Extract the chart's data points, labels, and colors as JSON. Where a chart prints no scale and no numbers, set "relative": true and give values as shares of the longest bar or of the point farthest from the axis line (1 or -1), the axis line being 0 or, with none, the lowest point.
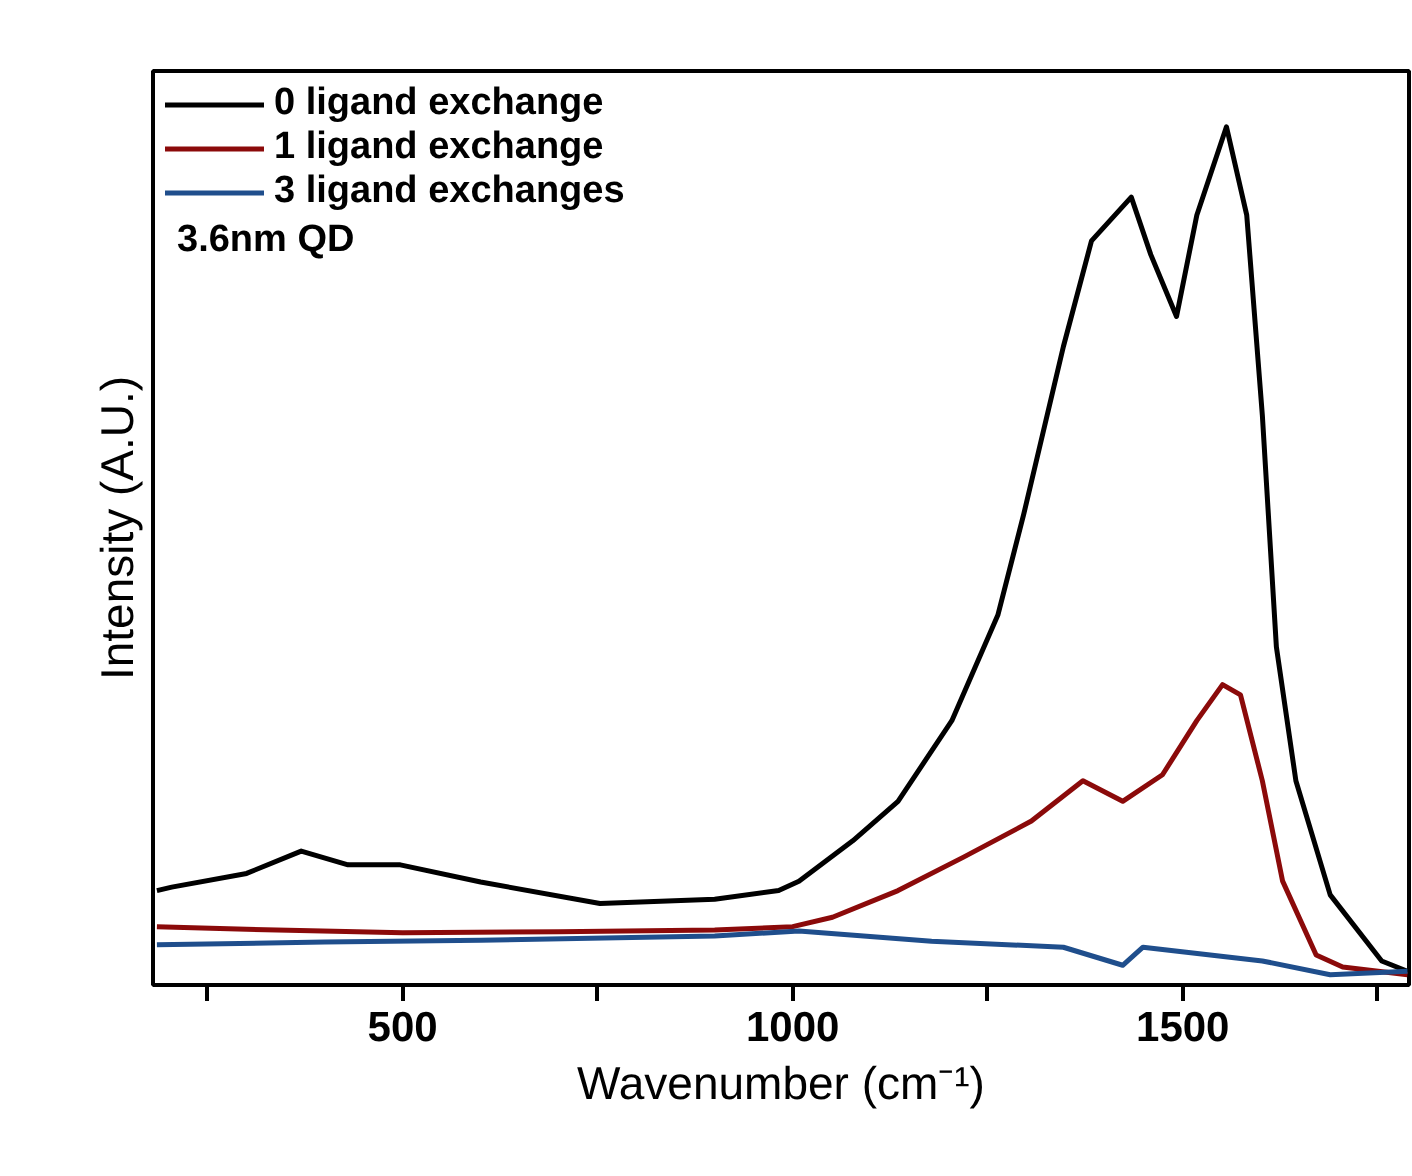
{
  "chart_data": {
    "type": "line",
    "relative": true,
    "xlabel": "Wavenumber (cm⁻¹)",
    "ylabel": "Intensity (A.U.)",
    "xlim": [
      180,
      1790
    ],
    "xticks": [
      {
        "value": 250,
        "label": null
      },
      500,
      {
        "value": 750,
        "label": null
      },
      1000,
      {
        "value": 1250,
        "label": null
      },
      1500,
      {
        "value": 1750,
        "label": null
      }
    ],
    "legend": "top left",
    "grid": false,
    "line_style": "solid",
    "marker": "none",
    "annotations": [
      "3.6nm QD"
    ],
    "series": [
      {
        "name": "0 ligand exchange",
        "color": "#000000",
        "x": [
          185,
          204,
          300,
          370,
          430,
          497,
          600,
          753,
          900,
          982,
          1008,
          1077,
          1135,
          1204,
          1263,
          1296,
          1347,
          1383,
          1434,
          1459,
          1492,
          1518,
          1556,
          1582,
          1602,
          1620,
          1645,
          1689,
          1755,
          1788
        ],
        "values": [
          0.11,
          0.114,
          0.13,
          0.156,
          0.14,
          0.14,
          0.12,
          0.095,
          0.1,
          0.11,
          0.121,
          0.168,
          0.214,
          0.308,
          0.431,
          0.548,
          0.744,
          0.867,
          0.918,
          0.851,
          0.779,
          0.897,
          1,
          0.897,
          0.664,
          0.394,
          0.238,
          0.105,
          0.028,
          0.016
        ]
      },
      {
        "name": "1 ligand exchange",
        "color": "#8b0a0a",
        "x": [
          185,
          300,
          500,
          700,
          900,
          1000,
          1051,
          1135,
          1219,
          1306,
          1372,
          1423,
          1474,
          1518,
          1551,
          1574,
          1602,
          1628,
          1671,
          1705,
          1788
        ],
        "values": [
          0.068,
          0.065,
          0.061,
          0.062,
          0.064,
          0.068,
          0.079,
          0.11,
          0.149,
          0.191,
          0.238,
          0.214,
          0.245,
          0.308,
          0.35,
          0.338,
          0.238,
          0.121,
          0.035,
          0.021,
          0.012
        ]
      },
      {
        "name": "3 ligand exchanges",
        "color": "#1f4e8c",
        "x": [
          185,
          400,
          600,
          900,
          1008,
          1178,
          1347,
          1423,
          1449,
          1602,
          1689,
          1788
        ],
        "values": [
          0.047,
          0.05,
          0.052,
          0.057,
          0.063,
          0.051,
          0.044,
          0.023,
          0.044,
          0.028,
          0.012,
          0.016
        ]
      }
    ]
  }
}
